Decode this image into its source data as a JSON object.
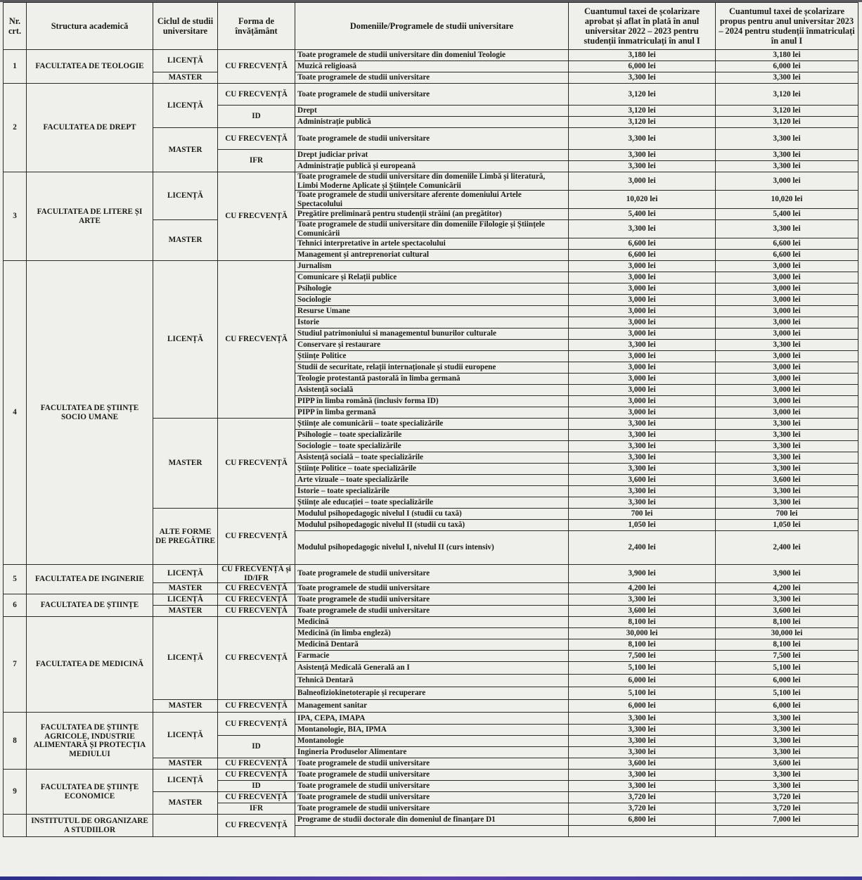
{
  "header": {
    "nr": "Nr. crt.",
    "structura": "Structura academică",
    "ciclul": "Ciclul de studii universitare",
    "forma": "Forma de învățământ",
    "domenii": "Domeniile/Programele de studii universitare",
    "taxa_2022": "Cuantumul taxei de școlarizare aprobat și aflat în plată în anul universitar 2022 – 2023 pentru studenții înmatriculați în anul I",
    "taxa_2023": "Cuantumul taxei de școlarizare propus pentru anul universitar 2023 – 2024 pentru studenții înmatriculați în anul I"
  },
  "rows": [
    {
      "nr": [
        "1",
        3
      ],
      "fac": [
        "FACULTATEA DE TEOLOGIE",
        3
      ],
      "cyc": [
        "LICENȚĂ",
        2
      ],
      "form": [
        "CU FRECVENȚĂ",
        3
      ],
      "p": "Toate programele de studii universitare din domeniul Teologie",
      "a": "3,180 lei",
      "b": "3,180 lei"
    },
    {
      "p": "Muzică religioasă",
      "a": "6,000 lei",
      "b": "6,000 lei"
    },
    {
      "cyc": [
        "MASTER",
        1
      ],
      "p": "Toate programele de studii universitare",
      "a": "3,300 lei",
      "b": "3,300 lei"
    },
    {
      "nr": [
        "2",
        6
      ],
      "fac": [
        "FACULTATEA DE DREPT",
        6
      ],
      "cyc": [
        "LICENȚĂ",
        3
      ],
      "form": [
        "CU FRECVENȚĂ",
        1
      ],
      "p": "Toate programele de studii universitare",
      "a": "3,120 lei",
      "b": "3,120 lei"
    },
    {
      "form": [
        "ID",
        2
      ],
      "p": "Drept",
      "a": "3,120 lei",
      "b": "3,120 lei"
    },
    {
      "p": "Administrație publică",
      "a": "3,120 lei",
      "b": "3,120 lei"
    },
    {
      "cyc": [
        "MASTER",
        3
      ],
      "form": [
        "CU FRECVENȚĂ",
        1
      ],
      "p": "Toate programele de studii universitare",
      "a": "3,300 lei",
      "b": "3,300 lei"
    },
    {
      "form": [
        "IFR",
        2
      ],
      "p": "Drept judiciar privat",
      "a": "3,300 lei",
      "b": "3,300 lei"
    },
    {
      "p": "Administrație publică și europeană",
      "a": "3,300 lei",
      "b": "3,300 lei"
    },
    {
      "nr": [
        "3",
        6
      ],
      "fac": [
        "FACULTATEA DE LITERE ȘI ARTE",
        6
      ],
      "cyc": [
        "LICENȚĂ",
        3
      ],
      "form": [
        "CU FRECVENȚĂ",
        6
      ],
      "p": "Toate programele de studii universitare din domeniile Limbă și literatură, Limbi Moderne Aplicate și Științele Comunicării",
      "a": "3,000 lei",
      "b": "3,000 lei"
    },
    {
      "p": "Toate programele de studii universitare aferente domeniului Artele Spectacolului",
      "a": "10,020 lei",
      "b": "10,020 lei"
    },
    {
      "p": "Pregătire preliminară pentru studenții străini (an pregătitor)",
      "a": "5,400 lei",
      "b": "5,400 lei"
    },
    {
      "cyc": [
        "MASTER",
        3
      ],
      "p": "Toate programele de studii universitare din domeniile Filologie și Științele Comunicării",
      "a": "3,300 lei",
      "b": "3,300 lei"
    },
    {
      "p": "Tehnici interpretative în artele spectacolului",
      "a": "6,600 lei",
      "b": "6,600 lei"
    },
    {
      "p": "Management și antreprenoriat cultural",
      "a": "6,600 lei",
      "b": "6,600 lei"
    },
    {
      "nr": [
        "4",
        25
      ],
      "fac": [
        "FACULTATEA DE ȘTIINȚE SOCIO UMANE",
        25
      ],
      "cyc": [
        "LICENȚĂ",
        14
      ],
      "form": [
        "CU FRECVENȚĂ",
        14
      ],
      "p": "Jurnalism",
      "a": "3,000 lei",
      "b": "3,000 lei"
    },
    {
      "p": "Comunicare și Relații publice",
      "a": "3,000 lei",
      "b": "3,000 lei"
    },
    {
      "p": "Psihologie",
      "a": "3,000 lei",
      "b": "3,000 lei"
    },
    {
      "p": "Sociologie",
      "a": "3,000 lei",
      "b": "3,000 lei"
    },
    {
      "p": "Resurse Umane",
      "a": "3,000 lei",
      "b": "3,000 lei"
    },
    {
      "p": "Istorie",
      "a": "3,000 lei",
      "b": "3,000 lei"
    },
    {
      "p": "Studiul patrimoniului si managementul bunurilor culturale",
      "a": "3,000 lei",
      "b": "3,000 lei"
    },
    {
      "p": "Conservare și restaurare",
      "a": "3,300 lei",
      "b": "3,300 lei"
    },
    {
      "p": "Științe Politice",
      "a": "3,000 lei",
      "b": "3,000 lei"
    },
    {
      "p": "Studii de securitate, relații internaționale și studii europene",
      "a": "3,000 lei",
      "b": "3,000 lei"
    },
    {
      "p": "Teologie protestantă pastorală în limba germană",
      "a": "3,000 lei",
      "b": "3,000 lei"
    },
    {
      "p": "Asistență socială",
      "a": "3,000 lei",
      "b": "3,000 lei"
    },
    {
      "p": "PIPP în limba română (inclusiv forma ID)",
      "a": "3,000 lei",
      "b": "3,000 lei"
    },
    {
      "p": "PIPP în limba germană",
      "a": "3,000 lei",
      "b": "3,000 lei"
    },
    {
      "cyc": [
        "MASTER",
        8
      ],
      "form": [
        "CU FRECVENȚĂ",
        8
      ],
      "p": "Științe ale comunicării – toate specializările",
      "a": "3,300 lei",
      "b": "3,300 lei"
    },
    {
      "p": "Psihologie – toate specializările",
      "a": "3,300 lei",
      "b": "3,300 lei"
    },
    {
      "p": "Sociologie – toate specializările",
      "a": "3,300 lei",
      "b": "3,300 lei"
    },
    {
      "p": "Asistență socială – toate specializările",
      "a": "3,300 lei",
      "b": "3,300 lei"
    },
    {
      "p": "Științe Politice – toate specializările",
      "a": "3,300 lei",
      "b": "3,300 lei"
    },
    {
      "p": "Arte vizuale – toate specializările",
      "a": "3,600 lei",
      "b": "3,600 lei"
    },
    {
      "p": "Istorie – toate specializările",
      "a": "3,300 lei",
      "b": "3,300 lei"
    },
    {
      "p": "Științe ale educației – toate specializările",
      "a": "3,300 lei",
      "b": "3,300 lei"
    },
    {
      "cyc": [
        "ALTE FORME DE PREGĂTIRE",
        3
      ],
      "form": [
        "CU FRECVENȚĂ",
        3
      ],
      "p": "Modulul psihopedagogic nivelul I (studii cu taxă)",
      "a": "700 lei",
      "b": "700 lei"
    },
    {
      "p": "Modulul psihopedagogic nivelul II (studii cu taxă)",
      "a": "1,050 lei",
      "b": "1,050 lei"
    },
    {
      "p": "Modulul psihopedagogic nivelul I, nivelul II (curs intensiv)",
      "a": "2,400 lei",
      "b": "2,400 lei"
    },
    {
      "nr": [
        "5",
        2
      ],
      "fac": [
        "FACULTATEA DE INGINERIE",
        2
      ],
      "cyc": [
        "LICENȚĂ",
        1
      ],
      "form": [
        "CU FRECVENȚĂ și ID/IFR",
        1
      ],
      "p": "Toate programele de studii universitare",
      "a": "3,900 lei",
      "b": "3,900 lei"
    },
    {
      "cyc": [
        "MASTER",
        1
      ],
      "form": [
        "CU FRECVENȚĂ",
        1
      ],
      "p": "Toate programele de studii universitare",
      "a": "4,200 lei",
      "b": "4,200 lei"
    },
    {
      "nr": [
        "6",
        2
      ],
      "fac": [
        "FACULTATEA DE ȘTIINȚE",
        2
      ],
      "cyc": [
        "LICENȚĂ",
        1
      ],
      "form": [
        "CU FRECVENȚĂ",
        1
      ],
      "p": "Toate programele de studii universitare",
      "a": "3,300 lei",
      "b": "3,300 lei"
    },
    {
      "cyc": [
        "MASTER",
        1
      ],
      "form": [
        "CU FRECVENȚĂ",
        1
      ],
      "p": "Toate programele de studii universitare",
      "a": "3,600 lei",
      "b": "3,600 lei"
    },
    {
      "nr": [
        "7",
        8
      ],
      "fac": [
        "FACULTATEA DE MEDICINĂ",
        8
      ],
      "cyc": [
        "LICENȚĂ",
        7
      ],
      "form": [
        "CU FRECVENȚĂ",
        7
      ],
      "p": "Medicină",
      "a": "8,100 lei",
      "b": "8,100 lei"
    },
    {
      "p": "Medicină (în limba engleză)",
      "a": "30,000 lei",
      "b": "30,000 lei"
    },
    {
      "p": "Medicină Dentară",
      "a": "8,100 lei",
      "b": "8,100 lei"
    },
    {
      "p": "Farmacie",
      "a": "7,500 lei",
      "b": "7,500 lei"
    },
    {
      "p": "Asistență Medicală Generală an I",
      "a": "5,100 lei",
      "b": "5,100 lei"
    },
    {
      "p": "Tehnică Dentară",
      "a": "6,000 lei",
      "b": "6,000 lei"
    },
    {
      "p": "Balneofiziokinetoterapie și recuperare",
      "a": "5,100 lei",
      "b": "5,100 lei"
    },
    {
      "cyc": [
        "MASTER",
        1
      ],
      "form": [
        "CU FRECVENȚĂ",
        1
      ],
      "p": "Management sanitar",
      "a": "6,000 lei",
      "b": "6,000 lei"
    },
    {
      "nr": [
        "8",
        5
      ],
      "fac": [
        "FACULTATEA DE ȘTIINȚE AGRICOLE, INDUSTRIE ALIMENTARĂ ȘI PROTECȚIA MEDIULUI",
        5
      ],
      "cyc": [
        "LICENȚĂ",
        4
      ],
      "form": [
        "CU FRECVENȚĂ",
        2
      ],
      "p": "IPA, CEPA, IMAPA",
      "a": "3,300 lei",
      "b": "3,300 lei"
    },
    {
      "p": "Montanologie, BIA, IPMA",
      "a": "3,300 lei",
      "b": "3,300 lei"
    },
    {
      "form": [
        "ID",
        2
      ],
      "p": "Montanologie",
      "a": "3,300 lei",
      "b": "3,300 lei"
    },
    {
      "p": "Ingineria Produselor Alimentare",
      "a": "3,300 lei",
      "b": "3,300 lei"
    },
    {
      "cyc": [
        "MASTER",
        1
      ],
      "form": [
        "CU FRECVENȚĂ",
        1
      ],
      "p": "Toate programele de studii universitare",
      "a": "3,600 lei",
      "b": "3,600 lei"
    },
    {
      "nr": [
        "9",
        4
      ],
      "fac": [
        "FACULTATEA DE ȘTIINȚE ECONOMICE",
        4
      ],
      "cyc": [
        "LICENȚĂ",
        2
      ],
      "form": [
        "CU FRECVENȚĂ",
        1
      ],
      "p": "Toate programele de studii universitare",
      "a": "3,300 lei",
      "b": "3,300 lei"
    },
    {
      "form": [
        "ID",
        1
      ],
      "p": "Toate programele de studii universitare",
      "a": "3,300 lei",
      "b": "3,300 lei"
    },
    {
      "cyc": [
        "MASTER",
        2
      ],
      "form": [
        "CU FRECVENȚĂ",
        1
      ],
      "p": "Toate programele de studii universitare",
      "a": "3,720 lei",
      "b": "3,720 lei"
    },
    {
      "form": [
        "IFR",
        1
      ],
      "p": "Toate programele de studii universitare",
      "a": "3,720 lei",
      "b": "3,720 lei"
    },
    {
      "nr": [
        "",
        2
      ],
      "fac": [
        "INSTITUTUL DE ORGANIZARE A STUDIILOR",
        2
      ],
      "cyc": [
        "",
        2
      ],
      "form": [
        "CU FRECVENȚĂ",
        2
      ],
      "p": "Programe de studii doctorale din domeniul de finanțare D1",
      "a": "6,800 lei",
      "b": "7,000 lei"
    },
    {
      "p": "",
      "a": "",
      "b": ""
    }
  ]
}
